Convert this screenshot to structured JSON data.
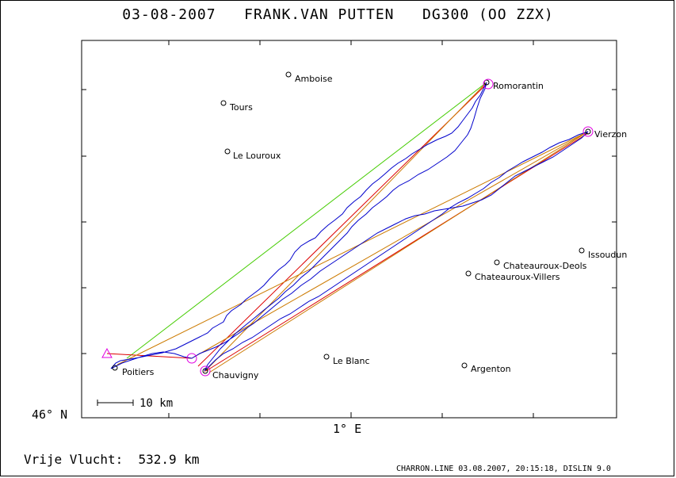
{
  "header": {
    "date": "03-08-2007",
    "pilot": "FRANK.VAN PUTTEN",
    "glider": "DG300 (OO ZZX)"
  },
  "axes": {
    "lat_label": "46° N",
    "lon_label": "1° E"
  },
  "scale_bar": {
    "label": "10 km"
  },
  "places": [
    {
      "name": "Amboise"
    },
    {
      "name": "Tours"
    },
    {
      "name": "Le Louroux"
    },
    {
      "name": "Romorantin"
    },
    {
      "name": "Vierzon"
    },
    {
      "name": "Issoudun"
    },
    {
      "name": "Chateauroux-Deols"
    },
    {
      "name": "Chateauroux-Villers"
    },
    {
      "name": "Le Blanc"
    },
    {
      "name": "Argenton"
    },
    {
      "name": "Poitiers"
    },
    {
      "name": "Chauvigny"
    }
  ],
  "footer": {
    "flight_label": "Vrije Vlucht:",
    "distance": "532.9 km",
    "generator": "CHARRON.LINE 03.08.2007, 20:15:18, DISLIN 9.0"
  },
  "colors": {
    "track": "#0000cc",
    "task_orange": "#cc7a00",
    "task_red": "#dd0000",
    "task_green": "#44cc00",
    "turnpoint": "#e000e0"
  }
}
